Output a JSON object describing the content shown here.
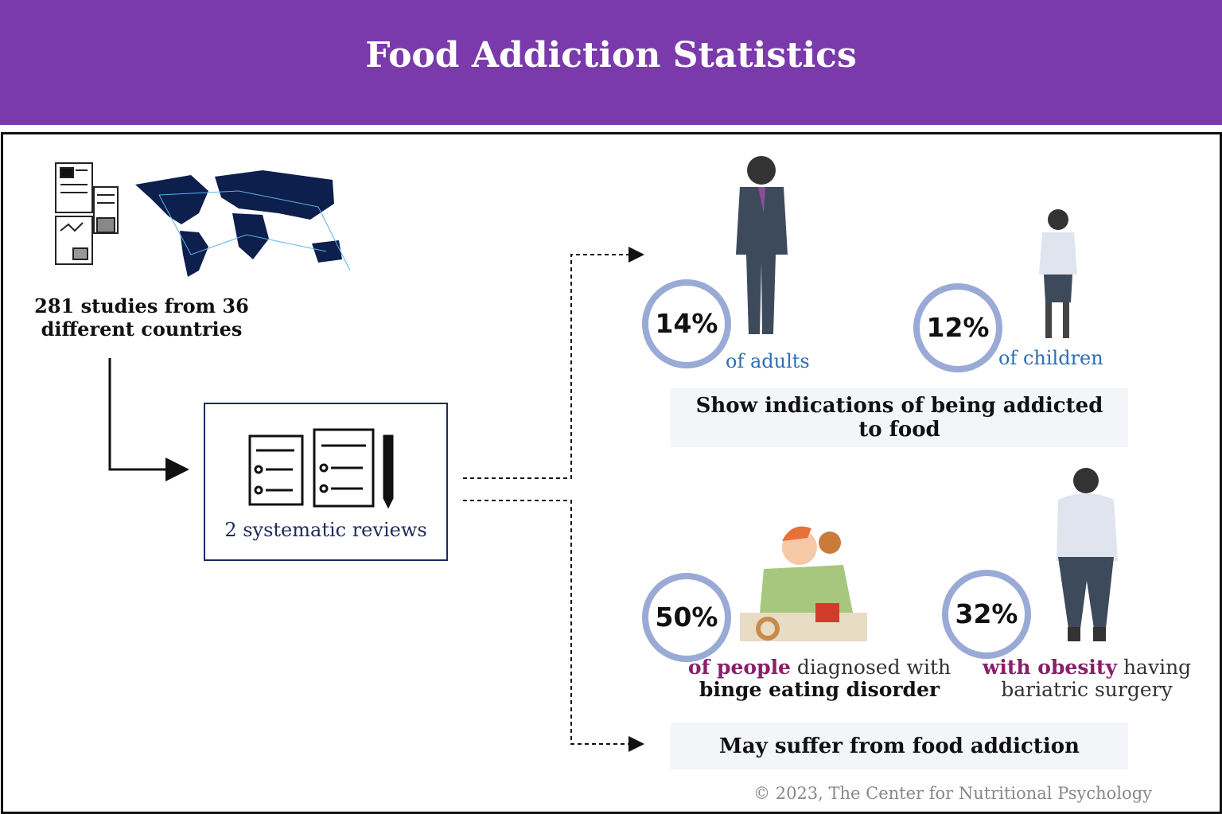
{
  "header": {
    "title": "Food Addiction Statistics"
  },
  "source": {
    "text": "281 studies from 36 different countries"
  },
  "reviews": {
    "label": "2 systematic reviews"
  },
  "group_1": {
    "stats": [
      {
        "value": "14%",
        "label": "of adults"
      },
      {
        "value": "12%",
        "label": "of children"
      }
    ],
    "caption": "Show indications of being addicted to food"
  },
  "group_2": {
    "stats": [
      {
        "value": "50%",
        "highlight": "of people",
        "rest": "diagnosed with",
        "bold": "binge eating disorder"
      },
      {
        "value": "32%",
        "highlight": "with obesity",
        "rest": "having",
        "second_line": "bariatric surgery"
      }
    ],
    "caption": "May suffer from food addiction"
  },
  "footer": {
    "copyright": "© 2023, The Center for Nutritional Psychology"
  }
}
